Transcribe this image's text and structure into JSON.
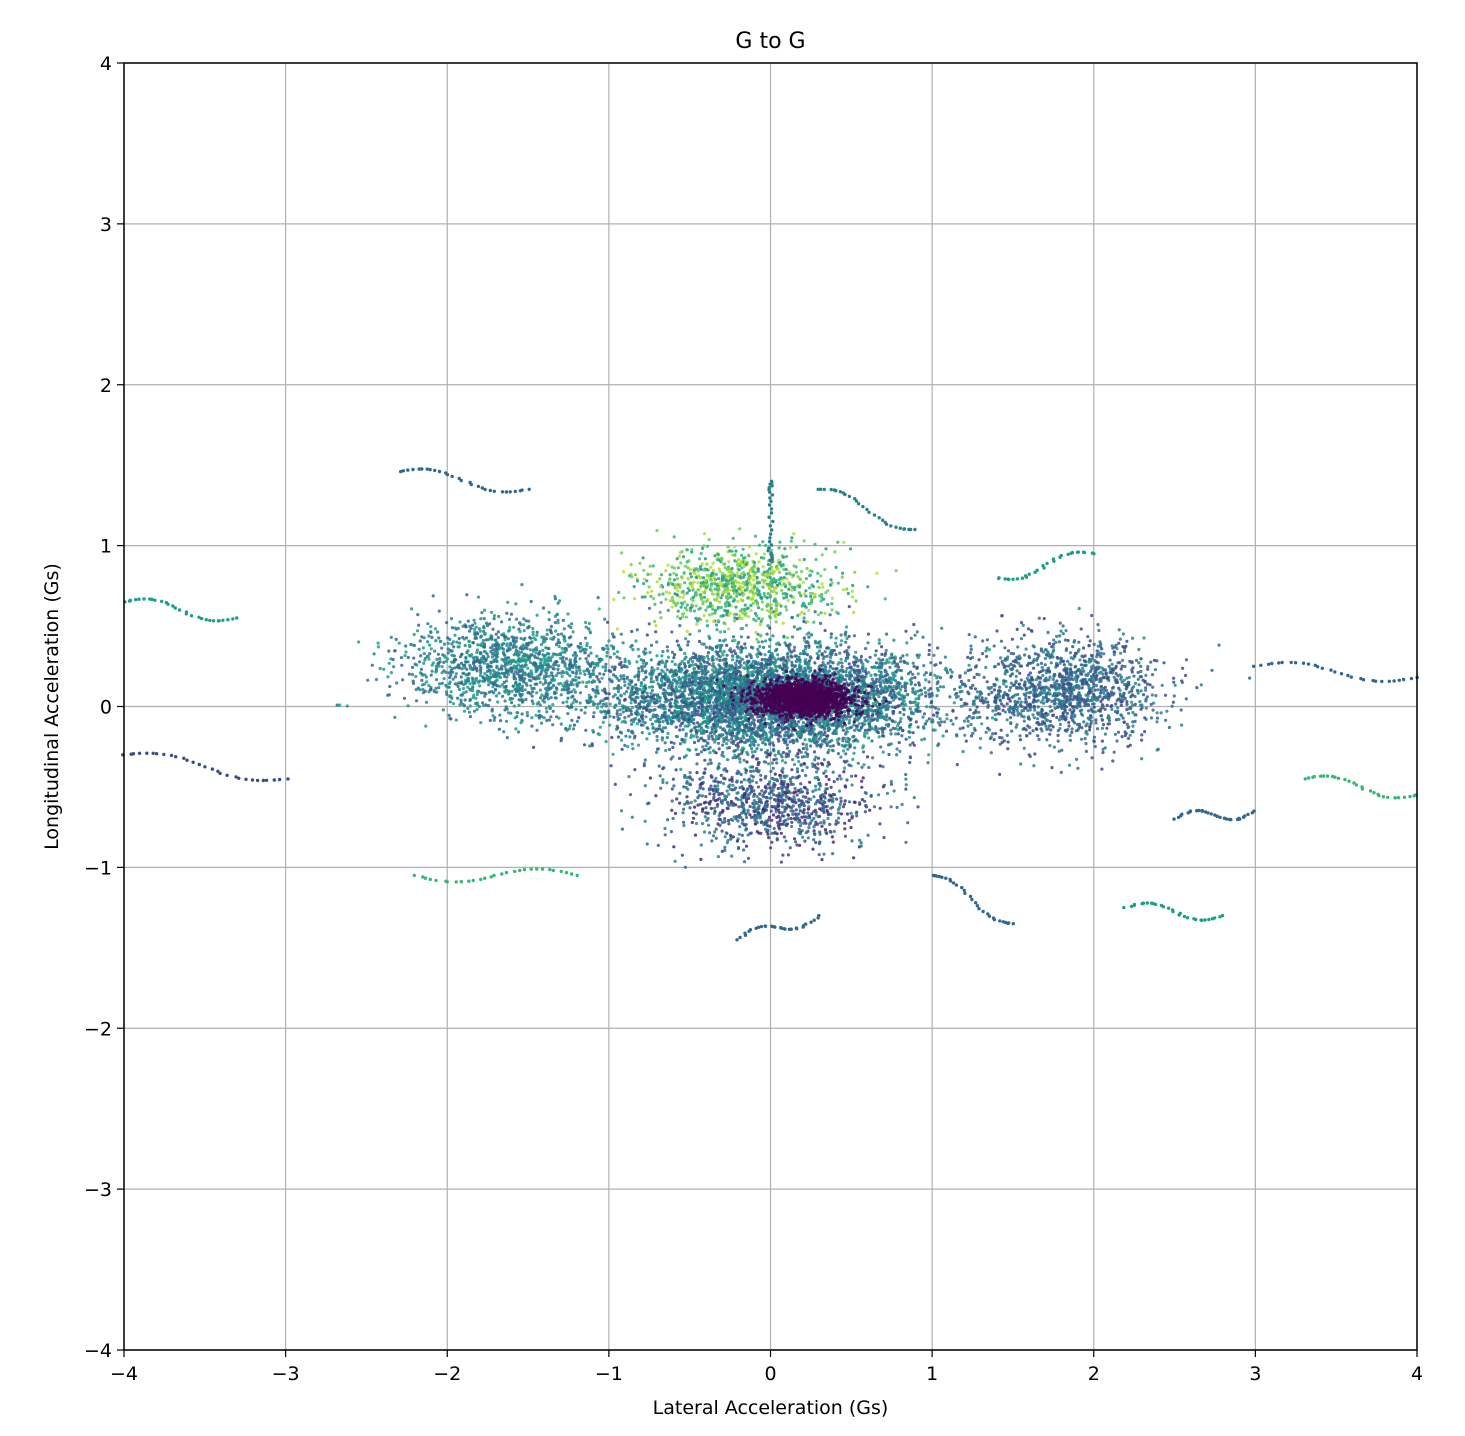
{
  "chart_data": {
    "type": "scatter",
    "title": "G to G",
    "xlabel": "Lateral Acceleration (Gs)",
    "ylabel": "Longitudinal Acceleration (Gs)",
    "xlim": [
      -4,
      4
    ],
    "ylim": [
      -4,
      4
    ],
    "xticks": [
      -4,
      -3,
      -2,
      -1,
      0,
      1,
      2,
      3,
      4
    ],
    "yticks": [
      -4,
      -3,
      -2,
      -1,
      0,
      1,
      2,
      3,
      4
    ],
    "xtick_labels": [
      "−4",
      "−3",
      "−2",
      "−1",
      "0",
      "1",
      "2",
      "3",
      "4"
    ],
    "ytick_labels": [
      "−4",
      "−3",
      "−2",
      "−1",
      "0",
      "1",
      "2",
      "3",
      "4"
    ],
    "grid": true,
    "colormap": "viridis",
    "palette": [
      "#440154",
      "#482878",
      "#3e4a89",
      "#31688e",
      "#26828e",
      "#1f9e89",
      "#35b779",
      "#6ece58",
      "#b5de2b"
    ],
    "points_note_removed": true,
    "clusters": [
      {
        "x_mean": 0.0,
        "y_mean": 0.05,
        "x_spread": 0.9,
        "y_spread": 0.3,
        "count": 5000,
        "palette_range": [
          2,
          5
        ]
      },
      {
        "x_mean": -1.6,
        "y_mean": 0.25,
        "x_spread": 0.6,
        "y_spread": 0.28,
        "count": 1300,
        "palette_range": [
          3,
          5
        ]
      },
      {
        "x_mean": 1.8,
        "y_mean": 0.1,
        "x_spread": 0.55,
        "y_spread": 0.3,
        "count": 1300,
        "palette_range": [
          2,
          4
        ]
      },
      {
        "x_mean": -0.2,
        "y_mean": 0.75,
        "x_spread": 0.55,
        "y_spread": 0.22,
        "count": 900,
        "palette_range": [
          5,
          8
        ]
      },
      {
        "x_mean": 0.0,
        "y_mean": -0.6,
        "x_spread": 0.6,
        "y_spread": 0.25,
        "count": 900,
        "palette_range": [
          1,
          4
        ]
      },
      {
        "x_mean": 0.2,
        "y_mean": 0.05,
        "x_spread": 0.28,
        "y_spread": 0.1,
        "count": 1600,
        "palette_range": [
          0,
          0
        ]
      }
    ],
    "trails": [
      {
        "start": [
          -4.0,
          0.65
        ],
        "end": [
          -3.3,
          0.55
        ],
        "palette_index": 5
      },
      {
        "start": [
          -4.0,
          -0.3
        ],
        "end": [
          -3.0,
          -0.45
        ],
        "palette_index": 2
      },
      {
        "start": [
          -2.3,
          1.46
        ],
        "end": [
          -1.5,
          1.35
        ],
        "palette_index": 3
      },
      {
        "start": [
          -1.2,
          -1.05
        ],
        "end": [
          -2.2,
          -1.05
        ],
        "palette_index": 6
      },
      {
        "start": [
          2.5,
          -0.7
        ],
        "end": [
          3.0,
          -0.65
        ],
        "palette_index": 3
      },
      {
        "start": [
          3.0,
          0.25
        ],
        "end": [
          4.0,
          0.18
        ],
        "palette_index": 3
      },
      {
        "start": [
          3.3,
          -0.45
        ],
        "end": [
          4.0,
          -0.55
        ],
        "palette_index": 6
      },
      {
        "start": [
          2.2,
          -1.25
        ],
        "end": [
          2.8,
          -1.3
        ],
        "palette_index": 5
      },
      {
        "start": [
          0.3,
          1.35
        ],
        "end": [
          0.9,
          1.1
        ],
        "palette_index": 4
      },
      {
        "start": [
          0.0,
          1.4
        ],
        "end": [
          0.0,
          0.9
        ],
        "palette_index": 4
      },
      {
        "start": [
          -0.2,
          -1.45
        ],
        "end": [
          0.3,
          -1.3
        ],
        "palette_index": 3
      },
      {
        "start": [
          1.0,
          -1.05
        ],
        "end": [
          1.5,
          -1.35
        ],
        "palette_index": 3
      },
      {
        "start": [
          2.0,
          0.95
        ],
        "end": [
          1.4,
          0.8
        ],
        "palette_index": 5
      }
    ]
  }
}
